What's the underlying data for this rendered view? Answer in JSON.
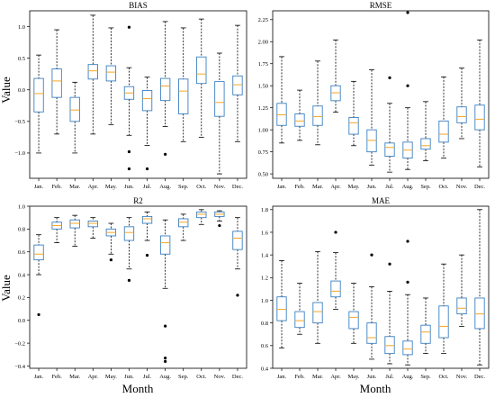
{
  "figure": {
    "xlabel_left": "Month",
    "xlabel_right": "Month",
    "ylabel_top": "Value",
    "ylabel_bottom": "Value"
  },
  "colors": {
    "box": "#3a7fc1",
    "median": "#f5a623",
    "whisker": "#000000",
    "outlier": "#000000"
  },
  "chart_data": [
    {
      "type": "box",
      "title": "BIAS",
      "categories": [
        "Jan.",
        "Feb.",
        "Mar.",
        "Apr.",
        "May.",
        "Jun.",
        "Jul.",
        "Aug.",
        "Sep.",
        "Oct.",
        "Nov.",
        "Dec."
      ],
      "ylim": [
        -1.4,
        1.25
      ],
      "yticks": [
        -1.0,
        -0.5,
        0.0,
        0.5,
        1.0
      ],
      "ytick_labels": [
        "−1.0",
        "−0.5",
        "0.0",
        "0.5",
        "1.0"
      ],
      "boxes": [
        {
          "low": -1.0,
          "q1": -0.35,
          "median": -0.06,
          "q3": 0.18,
          "high": 0.55,
          "outliers": []
        },
        {
          "low": -0.7,
          "q1": -0.12,
          "median": 0.14,
          "q3": 0.33,
          "high": 0.95,
          "outliers": []
        },
        {
          "low": -1.0,
          "q1": -0.5,
          "median": -0.32,
          "q3": -0.12,
          "high": 0.12,
          "outliers": []
        },
        {
          "low": -0.7,
          "q1": 0.17,
          "median": 0.3,
          "q3": 0.4,
          "high": 1.18,
          "outliers": []
        },
        {
          "low": -0.55,
          "q1": 0.14,
          "median": 0.28,
          "q3": 0.38,
          "high": 0.98,
          "outliers": []
        },
        {
          "low": -0.72,
          "q1": -0.15,
          "median": -0.05,
          "q3": 0.05,
          "high": 0.35,
          "outliers": [
            0.99,
            -0.98,
            -1.25
          ]
        },
        {
          "low": -0.88,
          "q1": -0.33,
          "median": -0.14,
          "q3": -0.01,
          "high": 0.2,
          "outliers": [
            -1.25
          ]
        },
        {
          "low": -0.58,
          "q1": -0.17,
          "median": 0.06,
          "q3": 0.18,
          "high": 1.08,
          "outliers": [
            -1.02
          ]
        },
        {
          "low": -0.82,
          "q1": -0.38,
          "median": -0.02,
          "q3": 0.17,
          "high": 0.98,
          "outliers": []
        },
        {
          "low": -0.75,
          "q1": 0.1,
          "median": 0.25,
          "q3": 0.52,
          "high": 1.12,
          "outliers": []
        },
        {
          "low": -1.33,
          "q1": -0.42,
          "median": -0.2,
          "q3": 0.13,
          "high": 0.58,
          "outliers": []
        },
        {
          "low": -0.82,
          "q1": -0.08,
          "median": 0.08,
          "q3": 0.22,
          "high": 1.02,
          "outliers": []
        }
      ]
    },
    {
      "type": "box",
      "title": "RMSE",
      "categories": [
        "Jan.",
        "Feb.",
        "Mar.",
        "Apr.",
        "May.",
        "Jun.",
        "Jul.",
        "Aug.",
        "Sep.",
        "Oct.",
        "Nov.",
        "Dec."
      ],
      "ylim": [
        0.45,
        2.35
      ],
      "yticks": [
        0.5,
        0.75,
        1.0,
        1.25,
        1.5,
        1.75,
        2.0,
        2.25
      ],
      "ytick_labels": [
        "0.50",
        "0.75",
        "1.00",
        "1.25",
        "1.50",
        "1.75",
        "2.00",
        "2.25"
      ],
      "boxes": [
        {
          "low": 0.85,
          "q1": 1.05,
          "median": 1.17,
          "q3": 1.3,
          "high": 1.83,
          "outliers": []
        },
        {
          "low": 0.88,
          "q1": 1.04,
          "median": 1.1,
          "q3": 1.18,
          "high": 1.45,
          "outliers": []
        },
        {
          "low": 0.83,
          "q1": 1.05,
          "median": 1.15,
          "q3": 1.27,
          "high": 1.78,
          "outliers": []
        },
        {
          "low": 1.2,
          "q1": 1.33,
          "median": 1.42,
          "q3": 1.5,
          "high": 2.02,
          "outliers": []
        },
        {
          "low": 0.82,
          "q1": 0.95,
          "median": 1.08,
          "q3": 1.14,
          "high": 1.55,
          "outliers": []
        },
        {
          "low": 0.6,
          "q1": 0.75,
          "median": 0.88,
          "q3": 1.0,
          "high": 1.68,
          "outliers": []
        },
        {
          "low": 0.52,
          "q1": 0.7,
          "median": 0.8,
          "q3": 0.85,
          "high": 1.3,
          "outliers": [
            1.59
          ]
        },
        {
          "low": 0.55,
          "q1": 0.68,
          "median": 0.77,
          "q3": 0.86,
          "high": 1.25,
          "outliers": [
            2.33,
            1.5
          ]
        },
        {
          "low": 0.65,
          "q1": 0.78,
          "median": 0.82,
          "q3": 0.9,
          "high": 1.32,
          "outliers": []
        },
        {
          "low": 0.68,
          "q1": 0.86,
          "median": 0.95,
          "q3": 1.1,
          "high": 1.6,
          "outliers": []
        },
        {
          "low": 0.9,
          "q1": 1.08,
          "median": 1.15,
          "q3": 1.26,
          "high": 1.7,
          "outliers": []
        },
        {
          "low": 0.58,
          "q1": 1.0,
          "median": 1.12,
          "q3": 1.28,
          "high": 2.02,
          "outliers": []
        }
      ]
    },
    {
      "type": "box",
      "title": "R2",
      "categories": [
        "Jan.",
        "Feb.",
        "Mar.",
        "Apr.",
        "May.",
        "Jun.",
        "Jul.",
        "Aug.",
        "Sep.",
        "Oct.",
        "Nov.",
        "Dec."
      ],
      "ylim": [
        -0.42,
        1.0
      ],
      "yticks": [
        -0.4,
        -0.2,
        0.0,
        0.2,
        0.4,
        0.6,
        0.8,
        1.0
      ],
      "ytick_labels": [
        "−0.4",
        "−0.2",
        "0.0",
        "0.2",
        "0.4",
        "0.6",
        "0.8",
        "1.0"
      ],
      "boxes": [
        {
          "low": 0.4,
          "q1": 0.53,
          "median": 0.58,
          "q3": 0.66,
          "high": 0.75,
          "outliers": [
            0.05
          ]
        },
        {
          "low": 0.68,
          "q1": 0.8,
          "median": 0.83,
          "q3": 0.86,
          "high": 0.9,
          "outliers": []
        },
        {
          "low": 0.65,
          "q1": 0.81,
          "median": 0.85,
          "q3": 0.88,
          "high": 0.92,
          "outliers": []
        },
        {
          "low": 0.72,
          "q1": 0.82,
          "median": 0.85,
          "q3": 0.87,
          "high": 0.9,
          "outliers": []
        },
        {
          "low": 0.58,
          "q1": 0.74,
          "median": 0.77,
          "q3": 0.8,
          "high": 0.85,
          "outliers": [
            0.53
          ]
        },
        {
          "low": 0.45,
          "q1": 0.7,
          "median": 0.77,
          "q3": 0.82,
          "high": 0.9,
          "outliers": [
            0.35
          ]
        },
        {
          "low": 0.7,
          "q1": 0.85,
          "median": 0.89,
          "q3": 0.91,
          "high": 0.95,
          "outliers": [
            0.57
          ]
        },
        {
          "low": 0.28,
          "q1": 0.58,
          "median": 0.68,
          "q3": 0.74,
          "high": 0.88,
          "outliers": [
            -0.05,
            -0.33,
            -0.36
          ]
        },
        {
          "low": 0.7,
          "q1": 0.82,
          "median": 0.86,
          "q3": 0.89,
          "high": 0.93,
          "outliers": []
        },
        {
          "low": 0.84,
          "q1": 0.9,
          "median": 0.93,
          "q3": 0.95,
          "high": 0.97,
          "outliers": []
        },
        {
          "low": 0.87,
          "q1": 0.91,
          "median": 0.93,
          "q3": 0.95,
          "high": 0.96,
          "outliers": [
            0.83
          ]
        },
        {
          "low": 0.45,
          "q1": 0.62,
          "median": 0.72,
          "q3": 0.78,
          "high": 0.9,
          "outliers": [
            0.22
          ]
        }
      ]
    },
    {
      "type": "box",
      "title": "MAE",
      "categories": [
        "Jan.",
        "Feb.",
        "Mar.",
        "Apr.",
        "May.",
        "Jun.",
        "Jul.",
        "Aug.",
        "Sep.",
        "Oct.",
        "Nov.",
        "Dec."
      ],
      "ylim": [
        0.4,
        1.83
      ],
      "yticks": [
        0.4,
        0.6,
        0.8,
        1.0,
        1.2,
        1.4,
        1.6,
        1.8
      ],
      "ytick_labels": [
        "0.4",
        "0.6",
        "0.8",
        "1.0",
        "1.2",
        "1.4",
        "1.6",
        "1.8"
      ],
      "boxes": [
        {
          "low": 0.58,
          "q1": 0.82,
          "median": 0.92,
          "q3": 1.03,
          "high": 1.35,
          "outliers": []
        },
        {
          "low": 0.7,
          "q1": 0.76,
          "median": 0.82,
          "q3": 0.9,
          "high": 1.15,
          "outliers": []
        },
        {
          "low": 0.62,
          "q1": 0.8,
          "median": 0.9,
          "q3": 0.98,
          "high": 1.43,
          "outliers": []
        },
        {
          "low": 0.92,
          "q1": 1.03,
          "median": 1.08,
          "q3": 1.17,
          "high": 1.42,
          "outliers": [
            1.6
          ]
        },
        {
          "low": 0.62,
          "q1": 0.75,
          "median": 0.85,
          "q3": 0.9,
          "high": 1.15,
          "outliers": []
        },
        {
          "low": 0.48,
          "q1": 0.62,
          "median": 0.67,
          "q3": 0.8,
          "high": 1.12,
          "outliers": [
            1.4
          ]
        },
        {
          "low": 0.44,
          "q1": 0.53,
          "median": 0.6,
          "q3": 0.68,
          "high": 1.08,
          "outliers": [
            1.32
          ]
        },
        {
          "low": 0.43,
          "q1": 0.52,
          "median": 0.57,
          "q3": 0.64,
          "high": 1.05,
          "outliers": [
            1.52,
            1.16
          ]
        },
        {
          "low": 0.53,
          "q1": 0.62,
          "median": 0.72,
          "q3": 0.78,
          "high": 1.02,
          "outliers": []
        },
        {
          "low": 0.53,
          "q1": 0.67,
          "median": 0.77,
          "q3": 0.95,
          "high": 1.32,
          "outliers": []
        },
        {
          "low": 0.77,
          "q1": 0.88,
          "median": 0.93,
          "q3": 1.02,
          "high": 1.4,
          "outliers": []
        },
        {
          "low": 0.43,
          "q1": 0.75,
          "median": 0.88,
          "q3": 1.02,
          "high": 1.8,
          "outliers": []
        }
      ]
    }
  ]
}
